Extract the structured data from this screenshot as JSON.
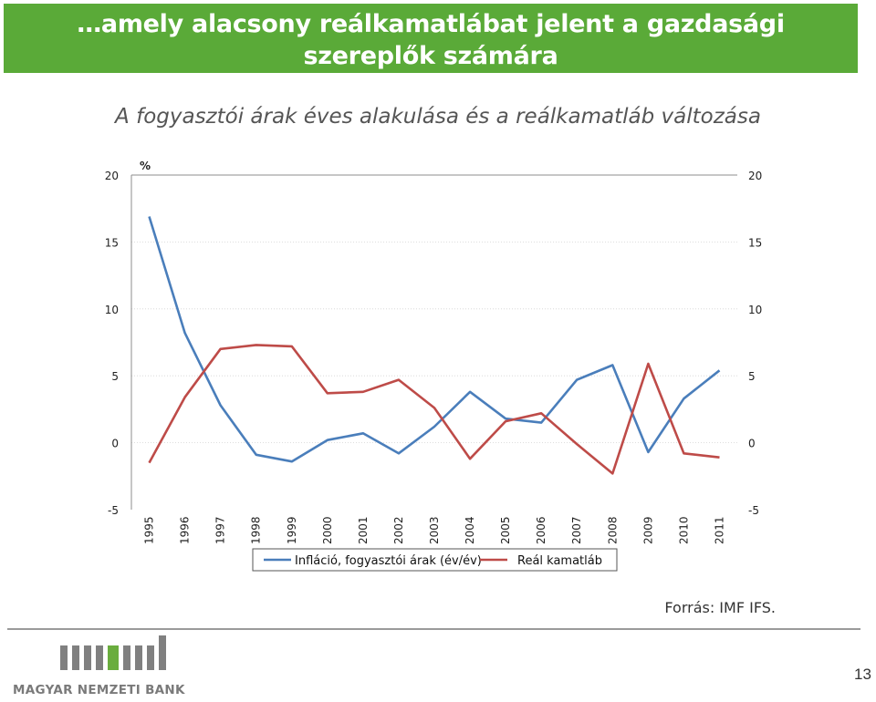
{
  "slide": {
    "title_line1": "…amely alacsony reálkamatlábat jelent a gazdasági",
    "title_line2": "szereplők számára",
    "subtitle": "A fogyasztói árak éves alakulása és a reálkamatláb változása",
    "source": "Forrás: IMF IFS.",
    "logo_text": "MAGYAR NEMZETI BANK",
    "page_number": "13",
    "colors": {
      "header_bg": "#5aaa38",
      "inflation": "#4a7ebb",
      "real_rate": "#be4b48"
    }
  },
  "chart_data": {
    "type": "line",
    "unit_label": "%",
    "categories": [
      "1995",
      "1996",
      "1997",
      "1998",
      "1999",
      "2000",
      "2001",
      "2002",
      "2003",
      "2004",
      "2005",
      "2006",
      "2007",
      "2008",
      "2009",
      "2010",
      "2011"
    ],
    "ylim": [
      -5,
      20
    ],
    "yticks": [
      -5,
      0,
      5,
      10,
      15,
      20
    ],
    "yticks_right": [
      -5,
      0,
      5,
      10,
      15,
      20
    ],
    "grid": true,
    "legend_position": "bottom",
    "series": [
      {
        "name": "Infláció, fogyasztói árak (év/év)",
        "color": "#4a7ebb",
        "values": [
          16.9,
          8.2,
          2.8,
          -0.9,
          -1.4,
          0.2,
          0.7,
          -0.8,
          1.2,
          3.8,
          1.8,
          1.5,
          4.7,
          5.8,
          -0.7,
          3.3,
          5.4
        ]
      },
      {
        "name": "Reál kamatláb",
        "color": "#be4b48",
        "values": [
          -1.5,
          3.4,
          7.0,
          7.3,
          7.2,
          3.7,
          3.8,
          4.7,
          2.6,
          -1.2,
          1.6,
          2.2,
          -0.1,
          -2.3,
          5.9,
          -0.8,
          -1.1
        ]
      }
    ]
  }
}
